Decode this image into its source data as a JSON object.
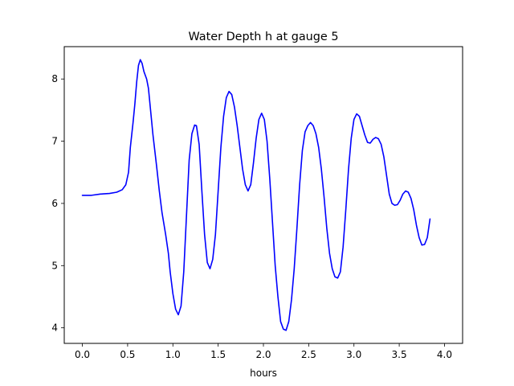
{
  "chart_data": {
    "type": "line",
    "title": "Water Depth h at gauge 5",
    "xlabel": "hours",
    "ylabel": "",
    "xlim": [
      -0.2,
      4.2
    ],
    "ylim": [
      3.75,
      8.52
    ],
    "xticks": [
      "0.0",
      "0.5",
      "1.0",
      "1.5",
      "2.0",
      "2.5",
      "3.0",
      "3.5",
      "4.0"
    ],
    "yticks": [
      "4",
      "5",
      "6",
      "7",
      "8"
    ],
    "grid": false,
    "legend": "none",
    "series": [
      {
        "color": "#0000ff",
        "points": [
          [
            0.0,
            6.13
          ],
          [
            0.1,
            6.13
          ],
          [
            0.2,
            6.15
          ],
          [
            0.3,
            6.16
          ],
          [
            0.38,
            6.18
          ],
          [
            0.44,
            6.22
          ],
          [
            0.48,
            6.3
          ],
          [
            0.51,
            6.5
          ],
          [
            0.53,
            6.9
          ],
          [
            0.56,
            7.3
          ],
          [
            0.58,
            7.6
          ],
          [
            0.6,
            7.95
          ],
          [
            0.62,
            8.22
          ],
          [
            0.64,
            8.31
          ],
          [
            0.66,
            8.25
          ],
          [
            0.68,
            8.12
          ],
          [
            0.71,
            8.0
          ],
          [
            0.73,
            7.85
          ],
          [
            0.75,
            7.55
          ],
          [
            0.78,
            7.1
          ],
          [
            0.82,
            6.6
          ],
          [
            0.85,
            6.2
          ],
          [
            0.88,
            5.85
          ],
          [
            0.92,
            5.5
          ],
          [
            0.95,
            5.2
          ],
          [
            0.97,
            4.9
          ],
          [
            1.0,
            4.55
          ],
          [
            1.03,
            4.3
          ],
          [
            1.06,
            4.21
          ],
          [
            1.09,
            4.35
          ],
          [
            1.12,
            4.9
          ],
          [
            1.15,
            5.8
          ],
          [
            1.18,
            6.7
          ],
          [
            1.21,
            7.12
          ],
          [
            1.24,
            7.26
          ],
          [
            1.26,
            7.25
          ],
          [
            1.29,
            6.95
          ],
          [
            1.32,
            6.2
          ],
          [
            1.35,
            5.5
          ],
          [
            1.38,
            5.05
          ],
          [
            1.41,
            4.95
          ],
          [
            1.44,
            5.1
          ],
          [
            1.47,
            5.5
          ],
          [
            1.5,
            6.2
          ],
          [
            1.53,
            6.9
          ],
          [
            1.56,
            7.4
          ],
          [
            1.59,
            7.7
          ],
          [
            1.62,
            7.8
          ],
          [
            1.65,
            7.75
          ],
          [
            1.68,
            7.55
          ],
          [
            1.71,
            7.25
          ],
          [
            1.74,
            6.9
          ],
          [
            1.77,
            6.55
          ],
          [
            1.8,
            6.3
          ],
          [
            1.83,
            6.2
          ],
          [
            1.86,
            6.3
          ],
          [
            1.89,
            6.65
          ],
          [
            1.92,
            7.05
          ],
          [
            1.95,
            7.35
          ],
          [
            1.98,
            7.45
          ],
          [
            2.01,
            7.35
          ],
          [
            2.04,
            7.0
          ],
          [
            2.07,
            6.4
          ],
          [
            2.1,
            5.7
          ],
          [
            2.13,
            5.0
          ],
          [
            2.16,
            4.5
          ],
          [
            2.19,
            4.1
          ],
          [
            2.22,
            3.98
          ],
          [
            2.25,
            3.96
          ],
          [
            2.28,
            4.1
          ],
          [
            2.31,
            4.45
          ],
          [
            2.34,
            4.95
          ],
          [
            2.37,
            5.6
          ],
          [
            2.4,
            6.3
          ],
          [
            2.43,
            6.85
          ],
          [
            2.46,
            7.15
          ],
          [
            2.49,
            7.25
          ],
          [
            2.52,
            7.3
          ],
          [
            2.55,
            7.25
          ],
          [
            2.58,
            7.12
          ],
          [
            2.61,
            6.9
          ],
          [
            2.64,
            6.55
          ],
          [
            2.67,
            6.1
          ],
          [
            2.7,
            5.6
          ],
          [
            2.73,
            5.2
          ],
          [
            2.76,
            4.95
          ],
          [
            2.79,
            4.82
          ],
          [
            2.82,
            4.8
          ],
          [
            2.85,
            4.9
          ],
          [
            2.88,
            5.3
          ],
          [
            2.91,
            5.9
          ],
          [
            2.94,
            6.55
          ],
          [
            2.97,
            7.05
          ],
          [
            3.0,
            7.35
          ],
          [
            3.03,
            7.44
          ],
          [
            3.06,
            7.4
          ],
          [
            3.09,
            7.25
          ],
          [
            3.12,
            7.1
          ],
          [
            3.15,
            6.98
          ],
          [
            3.18,
            6.97
          ],
          [
            3.21,
            7.03
          ],
          [
            3.24,
            7.06
          ],
          [
            3.27,
            7.04
          ],
          [
            3.3,
            6.95
          ],
          [
            3.33,
            6.75
          ],
          [
            3.36,
            6.45
          ],
          [
            3.39,
            6.15
          ],
          [
            3.42,
            6.0
          ],
          [
            3.45,
            5.97
          ],
          [
            3.48,
            5.98
          ],
          [
            3.51,
            6.05
          ],
          [
            3.54,
            6.15
          ],
          [
            3.57,
            6.2
          ],
          [
            3.6,
            6.18
          ],
          [
            3.63,
            6.08
          ],
          [
            3.66,
            5.9
          ],
          [
            3.69,
            5.65
          ],
          [
            3.72,
            5.45
          ],
          [
            3.75,
            5.33
          ],
          [
            3.78,
            5.34
          ],
          [
            3.81,
            5.45
          ],
          [
            3.84,
            5.75
          ]
        ]
      }
    ]
  }
}
